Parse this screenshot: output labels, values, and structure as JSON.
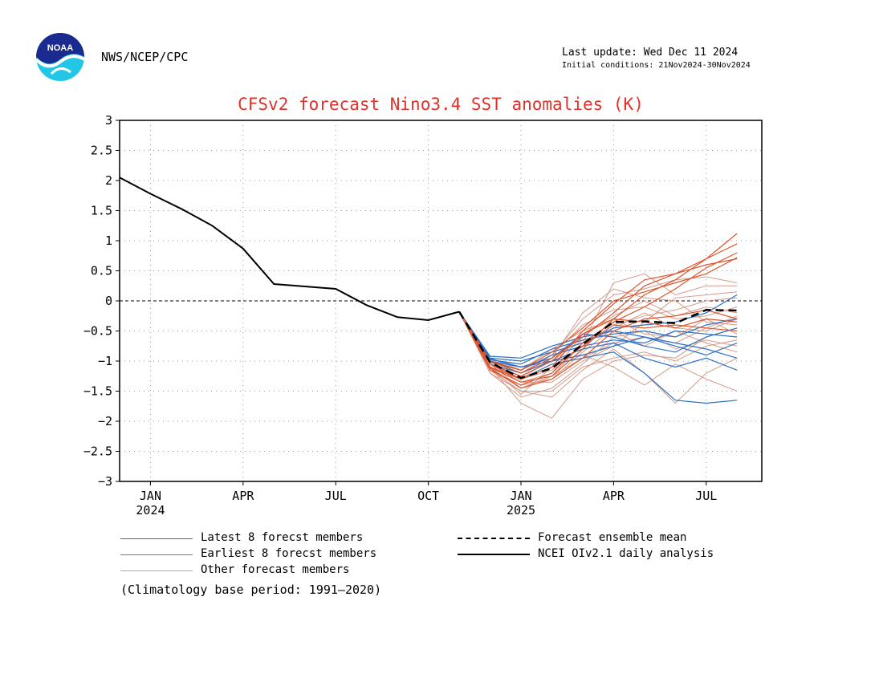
{
  "header": {
    "agency": "NWS/NCEP/CPC",
    "last_update": "Last update: Wed Dec 11 2024",
    "initial_conditions": "Initial conditions: 21Nov2024-30Nov2024",
    "logo_text": "NOAA"
  },
  "colors": {
    "latest": "#2b6fc7",
    "earliest": "#e0532a",
    "other": "#d49a88",
    "mean": "#000000",
    "analysis": "#000000",
    "title": "#e0322a"
  },
  "chart_data": {
    "type": "line",
    "title": "CFSv2 forecast Nino3.4 SST anomalies (K)",
    "ylim": [
      -3,
      3
    ],
    "yticks": [
      3,
      2.5,
      2,
      1.5,
      1,
      0.5,
      0,
      -0.5,
      -1,
      -1.5,
      -2,
      -2.5,
      -3
    ],
    "ytick_labels": [
      "3",
      "2.5",
      "2",
      "1.5",
      "1",
      "0.5",
      "0",
      "−0.5",
      "−1",
      "−1.5",
      "−2",
      "−2.5",
      "−3"
    ],
    "xlim": [
      0,
      20.8
    ],
    "x_unit": "months since Jan 2024",
    "xticks": [
      {
        "x": 1,
        "label": "JAN",
        "year": "2024"
      },
      {
        "x": 4,
        "label": "APR",
        "year": ""
      },
      {
        "x": 7,
        "label": "JUL",
        "year": ""
      },
      {
        "x": 10,
        "label": "OCT",
        "year": ""
      },
      {
        "x": 13,
        "label": "JAN",
        "year": "2025"
      },
      {
        "x": 16,
        "label": "APR",
        "year": ""
      },
      {
        "x": 19,
        "label": "JUL",
        "year": ""
      }
    ],
    "grid": true,
    "zero_line": true,
    "analysis": {
      "name": "NCEI OIv2.1 daily analysis",
      "x": [
        0,
        1,
        2,
        3,
        4,
        5,
        6,
        7,
        8,
        9,
        10,
        11
      ],
      "y": [
        2.05,
        1.78,
        1.53,
        1.25,
        0.87,
        0.28,
        0.24,
        0.2,
        -0.07,
        -0.27,
        -0.32,
        -0.18
      ]
    },
    "ensemble_mean": {
      "name": "Forecast ensemble mean",
      "x": [
        11,
        12,
        13,
        14,
        15,
        16,
        17,
        18,
        19,
        20
      ],
      "y": [
        -0.18,
        -1.02,
        -1.28,
        -1.12,
        -0.72,
        -0.35,
        -0.34,
        -0.37,
        -0.15,
        -0.16
      ]
    },
    "forecast_x": [
      11,
      12,
      13,
      14,
      15,
      16,
      17,
      18,
      19,
      20
    ],
    "series": [
      {
        "group": "other",
        "values": [
          -0.18,
          -1.1,
          -1.7,
          -1.95,
          -1.3,
          -1.0,
          -0.9,
          -0.95,
          -0.6,
          -0.45
        ]
      },
      {
        "group": "other",
        "values": [
          -0.18,
          -1.05,
          -1.45,
          -1.25,
          -0.7,
          0.3,
          0.45,
          0.1,
          0.25,
          0.25
        ]
      },
      {
        "group": "other",
        "values": [
          -0.18,
          -1.15,
          -1.5,
          -1.6,
          -1.15,
          -0.8,
          -1.2,
          -1.7,
          -1.2,
          -0.95
        ]
      },
      {
        "group": "other",
        "values": [
          -0.18,
          -1.0,
          -1.2,
          -0.9,
          -0.3,
          0.1,
          0.2,
          0.35,
          0.4,
          0.3
        ]
      },
      {
        "group": "other",
        "values": [
          -0.18,
          -1.2,
          -1.6,
          -1.45,
          -1.05,
          -0.6,
          -0.5,
          -0.8,
          -0.65,
          -0.75
        ]
      },
      {
        "group": "other",
        "values": [
          -0.18,
          -1.05,
          -1.35,
          -1.2,
          -0.55,
          -0.25,
          0.0,
          -0.25,
          -0.1,
          -0.2
        ]
      },
      {
        "group": "other",
        "values": [
          -0.18,
          -0.95,
          -1.15,
          -0.8,
          -0.5,
          -0.3,
          -0.55,
          -0.6,
          -0.3,
          -0.55
        ]
      },
      {
        "group": "other",
        "values": [
          -0.18,
          -1.1,
          -1.55,
          -1.1,
          -0.9,
          -1.1,
          -1.4,
          -1.05,
          -1.3,
          -1.5
        ]
      },
      {
        "group": "other",
        "values": [
          -0.18,
          -1.0,
          -1.3,
          -0.95,
          -0.2,
          0.2,
          0.05,
          0.0,
          -0.35,
          -0.4
        ]
      },
      {
        "group": "other",
        "values": [
          -0.18,
          -1.15,
          -1.4,
          -1.3,
          -0.85,
          -0.45,
          -0.2,
          -0.45,
          -0.5,
          -0.3
        ]
      },
      {
        "group": "other",
        "values": [
          -0.18,
          -1.05,
          -1.25,
          -1.0,
          -0.65,
          -0.5,
          -0.75,
          -0.5,
          -0.7,
          -0.85
        ]
      },
      {
        "group": "other",
        "values": [
          -0.18,
          -1.1,
          -1.35,
          -1.35,
          -1.0,
          -0.75,
          -0.35,
          0.05,
          0.1,
          0.15
        ]
      },
      {
        "group": "other",
        "values": [
          -0.18,
          -1.0,
          -1.2,
          -0.9,
          -0.4,
          -0.15,
          -0.1,
          -0.3,
          -0.25,
          -0.1
        ]
      },
      {
        "group": "other",
        "values": [
          -0.18,
          -1.2,
          -1.5,
          -1.5,
          -1.1,
          -0.95,
          -0.85,
          -1.0,
          -0.75,
          -0.65
        ]
      },
      {
        "group": "other",
        "values": [
          -0.18,
          -1.05,
          -1.3,
          -1.15,
          -0.75,
          -0.4,
          -0.25,
          -0.15,
          0.0,
          0.05
        ]
      },
      {
        "group": "other",
        "values": [
          -0.18,
          -1.1,
          -1.45,
          -1.25,
          -0.95,
          -0.7,
          -0.6,
          -0.7,
          -0.45,
          -0.25
        ]
      },
      {
        "group": "latest",
        "values": [
          -0.18,
          -0.92,
          -0.95,
          -0.75,
          -0.6,
          -0.5,
          -0.6,
          -0.75,
          -0.9,
          -0.7
        ]
      },
      {
        "group": "latest",
        "values": [
          -0.18,
          -0.95,
          -1.0,
          -0.85,
          -0.7,
          -0.45,
          -0.4,
          -0.35,
          -0.2,
          0.1
        ]
      },
      {
        "group": "latest",
        "values": [
          -0.18,
          -1.0,
          -1.1,
          -0.95,
          -0.55,
          -0.6,
          -0.75,
          -0.85,
          -0.6,
          -0.45
        ]
      },
      {
        "group": "latest",
        "values": [
          -0.18,
          -1.05,
          -1.2,
          -1.0,
          -0.8,
          -0.7,
          -0.95,
          -1.1,
          -0.95,
          -1.15
        ]
      },
      {
        "group": "latest",
        "values": [
          -0.18,
          -0.98,
          -1.05,
          -0.8,
          -0.65,
          -0.55,
          -0.5,
          -0.6,
          -0.4,
          -0.3
        ]
      },
      {
        "group": "latest",
        "values": [
          -0.18,
          -1.1,
          -1.3,
          -1.05,
          -0.95,
          -0.85,
          -1.2,
          -1.65,
          -1.7,
          -1.65
        ]
      },
      {
        "group": "latest",
        "values": [
          -0.18,
          -1.02,
          -1.15,
          -0.9,
          -0.75,
          -0.65,
          -0.7,
          -0.5,
          -0.55,
          -0.6
        ]
      },
      {
        "group": "latest",
        "values": [
          -0.18,
          -0.96,
          -1.1,
          -1.0,
          -0.9,
          -0.75,
          -0.6,
          -0.7,
          -0.8,
          -0.95
        ]
      },
      {
        "group": "earliest",
        "values": [
          -0.18,
          -1.05,
          -1.3,
          -1.1,
          -0.5,
          -0.05,
          0.35,
          0.45,
          0.7,
          1.12
        ]
      },
      {
        "group": "earliest",
        "values": [
          -0.18,
          -1.1,
          -1.35,
          -1.25,
          -0.8,
          -0.3,
          0.1,
          0.35,
          0.7,
          0.95
        ]
      },
      {
        "group": "earliest",
        "values": [
          -0.18,
          -1.0,
          -1.2,
          -0.95,
          -0.6,
          -0.2,
          0.25,
          0.45,
          0.6,
          0.7
        ]
      },
      {
        "group": "earliest",
        "values": [
          -0.18,
          -1.15,
          -1.4,
          -1.2,
          -0.7,
          -0.35,
          -0.1,
          0.2,
          0.55,
          0.8
        ]
      },
      {
        "group": "earliest",
        "values": [
          -0.18,
          -1.05,
          -1.25,
          -1.0,
          -0.55,
          -0.3,
          -0.35,
          -0.45,
          -0.3,
          -0.35
        ]
      },
      {
        "group": "earliest",
        "values": [
          -0.18,
          -1.1,
          -1.3,
          -1.1,
          -0.75,
          -0.4,
          -0.45,
          -0.4,
          -0.45,
          -0.5
        ]
      },
      {
        "group": "earliest",
        "values": [
          -0.18,
          -1.0,
          -1.15,
          -0.85,
          -0.45,
          0.0,
          0.15,
          0.3,
          0.45,
          0.72
        ]
      },
      {
        "group": "earliest",
        "values": [
          -0.18,
          -1.12,
          -1.45,
          -1.3,
          -0.95,
          -0.5,
          -0.3,
          -0.25,
          -0.15,
          -0.3
        ]
      }
    ]
  },
  "legend": {
    "latest": "Latest 8 forecst members",
    "earliest": "Earliest 8 forecst members",
    "other": "Other forecast members",
    "mean": "Forecast ensemble mean",
    "analysis": "NCEI OIv2.1 daily analysis"
  },
  "note": "(Climatology base period: 1991—2020)"
}
